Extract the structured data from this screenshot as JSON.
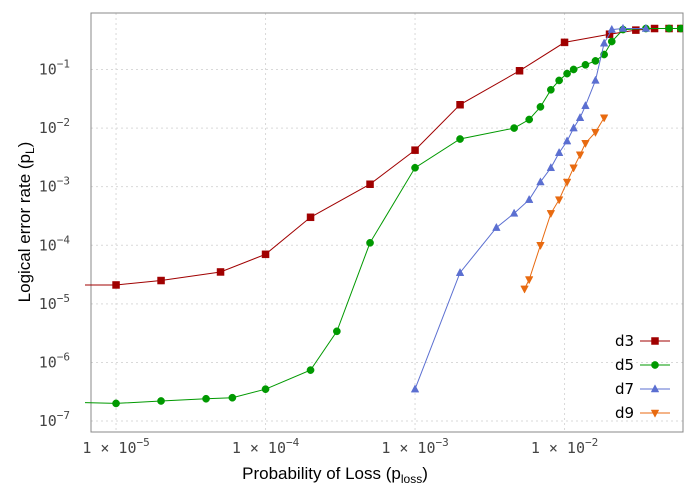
{
  "chart_data": {
    "type": "line",
    "xlabel": "Probability of Loss (p",
    "xlabel_sub": "loss",
    "xlabel_end": ")",
    "ylabel": "Logical error rate (p",
    "ylabel_sub": "L",
    "ylabel_end": ")",
    "x_scale": "log",
    "y_scale": "log",
    "xlim": [
      6.8e-06,
      0.062
    ],
    "ylim": [
      6.5e-08,
      0.92
    ],
    "grid": true,
    "legend_position": "bottom-right",
    "x_ticks": [
      {
        "value": 1e-05,
        "mantissa": "1 × 10",
        "exponent": "−5"
      },
      {
        "value": 0.0001,
        "mantissa": "1 × 10",
        "exponent": "−4"
      },
      {
        "value": 0.001,
        "mantissa": "1 × 10",
        "exponent": "−3"
      },
      {
        "value": 0.01,
        "mantissa": "1 × 10",
        "exponent": "−2"
      }
    ],
    "y_ticks": [
      {
        "value": 1e-07,
        "base": "10",
        "exponent": "−7"
      },
      {
        "value": 1e-06,
        "base": "10",
        "exponent": "−6"
      },
      {
        "value": 1e-05,
        "base": "10",
        "exponent": "−5"
      },
      {
        "value": 0.0001,
        "base": "10",
        "exponent": "−4"
      },
      {
        "value": 0.001,
        "base": "10",
        "exponent": "−3"
      },
      {
        "value": 0.01,
        "base": "10",
        "exponent": "−2"
      },
      {
        "value": 0.1,
        "base": "10",
        "exponent": "−1"
      }
    ],
    "series": [
      {
        "name": "d3",
        "color": "#a00000",
        "marker": "square",
        "x": [
          5e-06,
          1e-05,
          2e-05,
          5e-05,
          0.0001,
          0.0002,
          0.0005,
          0.001,
          0.002,
          0.005,
          0.01,
          0.02,
          0.03,
          0.04,
          0.05,
          0.06
        ],
        "y": [
          2.1e-05,
          2.1e-05,
          2.5e-05,
          3.5e-05,
          7e-05,
          0.0003,
          0.0011,
          0.0042,
          0.025,
          0.095,
          0.29,
          0.4,
          0.47,
          0.5,
          0.5,
          0.5
        ]
      },
      {
        "name": "d5",
        "color": "#009900",
        "marker": "circle",
        "x": [
          5e-06,
          1e-05,
          2e-05,
          4e-05,
          6e-05,
          0.0001,
          0.0002,
          0.0003,
          0.0005,
          0.001,
          0.002,
          0.0046,
          0.0058,
          0.0069,
          0.0081,
          0.0092,
          0.0104,
          0.0115,
          0.0138,
          0.0161,
          0.0184,
          0.0207,
          0.0246,
          0.035,
          0.05,
          0.06
        ],
        "y": [
          2.1e-07,
          2e-07,
          2.2e-07,
          2.4e-07,
          2.5e-07,
          3.5e-07,
          7.4e-07,
          3.4e-06,
          0.00011,
          0.0021,
          0.0065,
          0.01,
          0.014,
          0.023,
          0.045,
          0.065,
          0.085,
          0.1,
          0.12,
          0.14,
          0.18,
          0.3,
          0.48,
          0.5,
          0.5,
          0.5
        ]
      },
      {
        "name": "d7",
        "color": "#5b6fd1",
        "marker": "triangle-up",
        "x": [
          0.001,
          0.002,
          0.0035,
          0.0046,
          0.0058,
          0.0069,
          0.0081,
          0.0092,
          0.0104,
          0.0115,
          0.0127,
          0.0138,
          0.0161,
          0.0184,
          0.0207,
          0.0246,
          0.035
        ],
        "y": [
          3.5e-07,
          3.4e-05,
          0.0002,
          0.00035,
          0.0006,
          0.0012,
          0.0021,
          0.0038,
          0.006,
          0.01,
          0.015,
          0.024,
          0.065,
          0.28,
          0.48,
          0.5,
          0.5
        ]
      },
      {
        "name": "d9",
        "color": "#e86a10",
        "marker": "triangle-down",
        "x": [
          0.0054,
          0.0058,
          0.0069,
          0.0081,
          0.0092,
          0.0104,
          0.0115,
          0.0127,
          0.0138,
          0.0161,
          0.0184
        ],
        "y": [
          1.8e-05,
          2.6e-05,
          0.0001,
          0.00035,
          0.0006,
          0.0012,
          0.0021,
          0.0035,
          0.0055,
          0.0085,
          0.015
        ]
      }
    ]
  }
}
